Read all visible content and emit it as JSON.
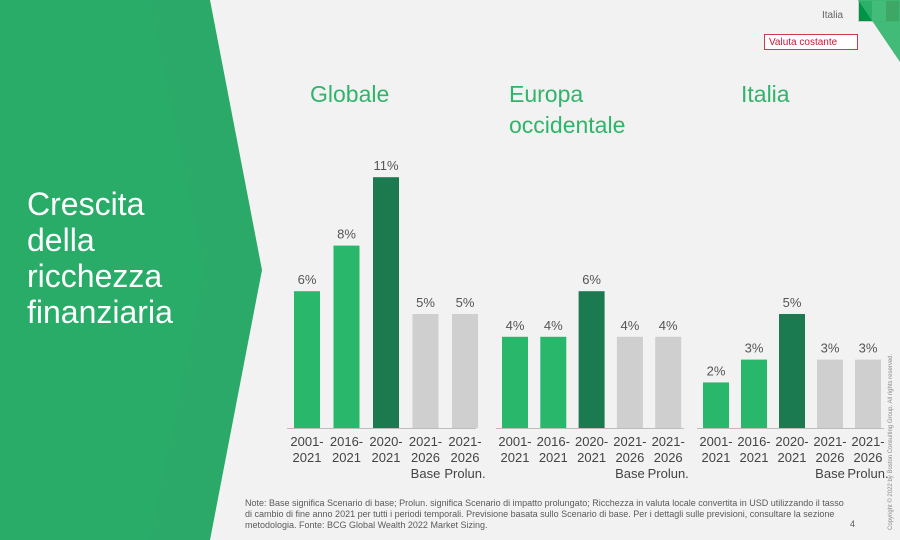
{
  "slide": {
    "title": "Crescita\ndella\nricchezza\nfinanziaria",
    "country_label": "Italia",
    "currency_badge": "Valuta costante",
    "footnote": "Note: Base significa Scenario di base; Prolun. significa Scenario di impatto prolungato; Ricchezza in valuta locale convertita in USD utilizzando il tasso di cambio di fine anno 2021 per tutti i periodi temporali. Previsione basata sullo Scenario di base. Per i dettagli sulle previsioni, consultare la sezione metodologia. Fonte: BCG Global Wealth 2022 Market Sizing.",
    "page_number": "4",
    "copyright": "Copyright © 2022 by Boston Consulting Group. All rights reserved."
  },
  "colors": {
    "brand_green": "#2fb56a",
    "bar_green": "#29b86b",
    "bar_dark_green": "#1b7a50",
    "bar_grey": "#cfcfcf",
    "flag_green": "#009246",
    "flag_white": "#ffffff",
    "flag_red": "#ce2b37"
  },
  "chart_data": [
    {
      "type": "bar",
      "title": "Globale",
      "categories": [
        "2001-\n2021",
        "2016-\n2021",
        "2020-\n2021",
        "2021-\n2026\nBase",
        "2021-\n2026\nProlun."
      ],
      "values": [
        6,
        8,
        11,
        5,
        5
      ],
      "value_labels": [
        "6%",
        "8%",
        "11%",
        "5%",
        "5%"
      ],
      "bar_colors": [
        "#29b86b",
        "#29b86b",
        "#1b7a50",
        "#cfcfcf",
        "#cfcfcf"
      ]
    },
    {
      "type": "bar",
      "title": "Europa\noccidentale",
      "categories": [
        "2001-\n2021",
        "2016-\n2021",
        "2020-\n2021",
        "2021-\n2026\nBase",
        "2021-\n2026\nProlun."
      ],
      "values": [
        4,
        4,
        6,
        4,
        4
      ],
      "value_labels": [
        "4%",
        "4%",
        "6%",
        "4%",
        "4%"
      ],
      "bar_colors": [
        "#29b86b",
        "#29b86b",
        "#1b7a50",
        "#cfcfcf",
        "#cfcfcf"
      ]
    },
    {
      "type": "bar",
      "title": "Italia",
      "categories": [
        "2001-\n2021",
        "2016-\n2021",
        "2020-\n2021",
        "2021-\n2026\nBase",
        "2021-\n2026\nProlun."
      ],
      "values": [
        2,
        3,
        5,
        3,
        3
      ],
      "value_labels": [
        "2%",
        "3%",
        "5%",
        "3%",
        "3%"
      ],
      "bar_colors": [
        "#29b86b",
        "#29b86b",
        "#1b7a50",
        "#cfcfcf",
        "#cfcfcf"
      ]
    }
  ]
}
